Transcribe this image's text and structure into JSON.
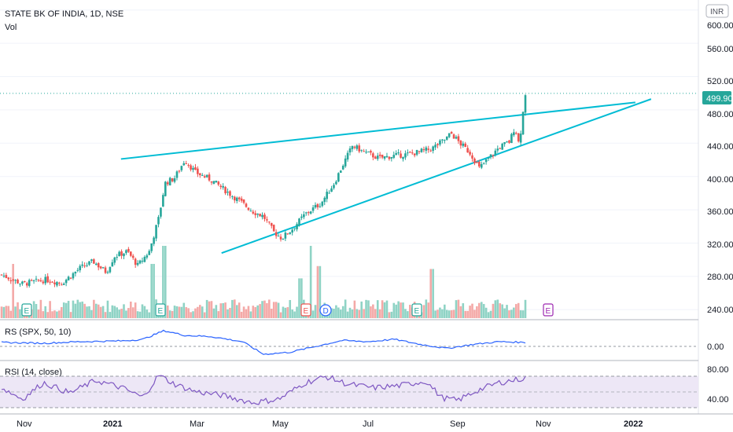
{
  "header": {
    "symbol_title": "STATE BK OF INDIA, 1D, NSE",
    "volume_label": "Vol",
    "currency_badge": "INR"
  },
  "price_axis": {
    "ticks": [
      "600.00",
      "560.00",
      "520.00",
      "480.00",
      "440.00",
      "400.00",
      "360.00",
      "320.00",
      "280.00",
      "240.00"
    ],
    "last_price_label": "499.90"
  },
  "rs_panel": {
    "title": "RS (SPX, 50, 10)",
    "tick": "0.00"
  },
  "rsi_panel": {
    "title": "RSI (14, close)",
    "ticks": [
      "80.00",
      "40.00"
    ]
  },
  "time_axis": {
    "ticks": [
      "Nov",
      "2021",
      "Mar",
      "May",
      "Jul",
      "Sep",
      "Nov",
      "2022"
    ]
  },
  "event_markers": [
    "E",
    "E",
    "E",
    "D",
    "E",
    "E"
  ],
  "colors": {
    "up": "#26a69a",
    "down": "#ef5350",
    "trendline": "#00bcd4",
    "rs_line": "#2962ff",
    "rsi_line": "#7e57c2",
    "rsi_band": "#ede7f6",
    "last_price_bg": "#26a69a"
  },
  "chart_data": {
    "type": "candlestick",
    "y_range": [
      228,
      612
    ],
    "last_price": 499.9,
    "close_path": [
      {
        "t": 0.0,
        "v": 282
      },
      {
        "t": 0.04,
        "v": 271
      },
      {
        "t": 0.085,
        "v": 276
      },
      {
        "t": 0.115,
        "v": 272
      },
      {
        "t": 0.15,
        "v": 290
      },
      {
        "t": 0.175,
        "v": 298
      },
      {
        "t": 0.2,
        "v": 285
      },
      {
        "t": 0.215,
        "v": 304
      },
      {
        "t": 0.24,
        "v": 310
      },
      {
        "t": 0.26,
        "v": 293
      },
      {
        "t": 0.282,
        "v": 310
      },
      {
        "t": 0.3,
        "v": 350
      },
      {
        "t": 0.312,
        "v": 392
      },
      {
        "t": 0.33,
        "v": 398
      },
      {
        "t": 0.35,
        "v": 420
      },
      {
        "t": 0.37,
        "v": 405
      },
      {
        "t": 0.4,
        "v": 396
      },
      {
        "t": 0.43,
        "v": 382
      },
      {
        "t": 0.455,
        "v": 370
      },
      {
        "t": 0.48,
        "v": 358
      },
      {
        "t": 0.5,
        "v": 352
      },
      {
        "t": 0.52,
        "v": 333
      },
      {
        "t": 0.535,
        "v": 326
      },
      {
        "t": 0.555,
        "v": 337
      },
      {
        "t": 0.58,
        "v": 355
      },
      {
        "t": 0.61,
        "v": 368
      },
      {
        "t": 0.635,
        "v": 392
      },
      {
        "t": 0.65,
        "v": 412
      },
      {
        "t": 0.67,
        "v": 437
      },
      {
        "t": 0.69,
        "v": 430
      },
      {
        "t": 0.72,
        "v": 422
      },
      {
        "t": 0.75,
        "v": 425
      },
      {
        "t": 0.78,
        "v": 427
      },
      {
        "t": 0.82,
        "v": 433
      },
      {
        "t": 0.848,
        "v": 445
      },
      {
        "t": 0.858,
        "v": 452
      },
      {
        "t": 0.875,
        "v": 440
      },
      {
        "t": 0.895,
        "v": 428
      },
      {
        "t": 0.912,
        "v": 410
      },
      {
        "t": 0.93,
        "v": 422
      },
      {
        "t": 0.95,
        "v": 435
      },
      {
        "t": 0.97,
        "v": 442
      },
      {
        "t": 0.98,
        "v": 460
      },
      {
        "t": 0.988,
        "v": 438
      },
      {
        "t": 1.0,
        "v": 499.9
      }
    ],
    "volume_spikes": [
      {
        "t": 0.022,
        "r": 0.75
      },
      {
        "t": 0.29,
        "r": 0.75
      },
      {
        "t": 0.312,
        "r": 1.0
      },
      {
        "t": 0.57,
        "r": 0.55
      },
      {
        "t": 0.59,
        "r": 1.0
      },
      {
        "t": 0.605,
        "r": 0.72
      },
      {
        "t": 0.82,
        "r": 0.68
      }
    ],
    "trendlines": [
      {
        "name": "upper",
        "from": {
          "t": 0.228,
          "v": 421
        },
        "to": {
          "t": 1.21,
          "v": 489
        }
      },
      {
        "name": "lower",
        "from": {
          "t": 0.42,
          "v": 308
        },
        "to": {
          "t": 1.24,
          "v": 493
        }
      }
    ],
    "rs_path": [
      {
        "t": 0.0,
        "v": 0.1
      },
      {
        "t": 0.08,
        "v": 0.08
      },
      {
        "t": 0.15,
        "v": 0.12
      },
      {
        "t": 0.23,
        "v": 0.14
      },
      {
        "t": 0.27,
        "v": 0.18
      },
      {
        "t": 0.31,
        "v": 0.4
      },
      {
        "t": 0.35,
        "v": 0.28
      },
      {
        "t": 0.4,
        "v": 0.25
      },
      {
        "t": 0.46,
        "v": 0.12
      },
      {
        "t": 0.5,
        "v": -0.2
      },
      {
        "t": 0.55,
        "v": -0.15
      },
      {
        "t": 0.6,
        "v": 0.0
      },
      {
        "t": 0.65,
        "v": 0.15
      },
      {
        "t": 0.7,
        "v": 0.12
      },
      {
        "t": 0.75,
        "v": 0.18
      },
      {
        "t": 0.8,
        "v": 0.05
      },
      {
        "t": 0.85,
        "v": -0.05
      },
      {
        "t": 0.9,
        "v": 0.05
      },
      {
        "t": 0.95,
        "v": 0.12
      },
      {
        "t": 1.0,
        "v": 0.1
      }
    ],
    "rsi_path": [
      {
        "t": 0.0,
        "v": 55
      },
      {
        "t": 0.04,
        "v": 40
      },
      {
        "t": 0.08,
        "v": 62
      },
      {
        "t": 0.13,
        "v": 48
      },
      {
        "t": 0.18,
        "v": 65
      },
      {
        "t": 0.23,
        "v": 55
      },
      {
        "t": 0.27,
        "v": 42
      },
      {
        "t": 0.3,
        "v": 72
      },
      {
        "t": 0.33,
        "v": 60
      },
      {
        "t": 0.37,
        "v": 50
      },
      {
        "t": 0.42,
        "v": 45
      },
      {
        "t": 0.48,
        "v": 35
      },
      {
        "t": 0.53,
        "v": 40
      },
      {
        "t": 0.58,
        "v": 62
      },
      {
        "t": 0.62,
        "v": 70
      },
      {
        "t": 0.66,
        "v": 60
      },
      {
        "t": 0.71,
        "v": 55
      },
      {
        "t": 0.76,
        "v": 58
      },
      {
        "t": 0.81,
        "v": 64
      },
      {
        "t": 0.84,
        "v": 42
      },
      {
        "t": 0.87,
        "v": 38
      },
      {
        "t": 0.91,
        "v": 52
      },
      {
        "t": 0.95,
        "v": 62
      },
      {
        "t": 1.0,
        "v": 68
      }
    ]
  }
}
